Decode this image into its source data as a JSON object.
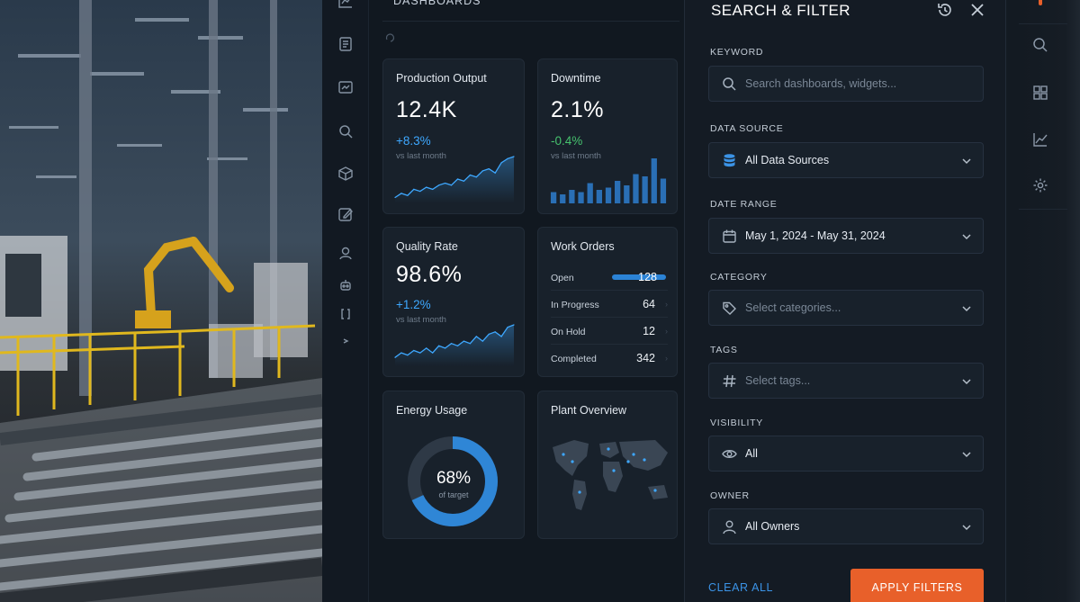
{
  "dashboard": {
    "title": "DASHBOARDS",
    "cards": {
      "production": {
        "title": "Production Output",
        "value": "12.4K",
        "delta": "+8.3%",
        "sub": "vs last month"
      },
      "downtime": {
        "title": "Downtime",
        "value": "2.1%",
        "delta": "-0.4%",
        "sub": "vs last month"
      },
      "quality": {
        "title": "Quality Rate",
        "value": "98.6%",
        "delta": "+1.2%",
        "sub": "vs last month"
      },
      "work_orders": {
        "title": "Work Orders",
        "rows": [
          {
            "label": "Open",
            "value": "128"
          },
          {
            "label": "In Progress",
            "value": "64"
          },
          {
            "label": "On Hold",
            "value": "12"
          },
          {
            "label": "Completed",
            "value": "342"
          }
        ]
      },
      "energy": {
        "title": "Energy Usage",
        "value": "68%",
        "sub": "of target",
        "fraction": 0.68
      },
      "plant": {
        "title": "Plant Overview"
      }
    }
  },
  "filter_panel": {
    "title": "SEARCH & FILTER",
    "keyword": {
      "label": "KEYWORD",
      "placeholder": "Search dashboards, widgets..."
    },
    "data_source": {
      "label": "DATA SOURCE",
      "value": "All Data Sources"
    },
    "date_range": {
      "label": "DATE RANGE",
      "value": "May 1, 2024 - May 31, 2024"
    },
    "category": {
      "label": "CATEGORY",
      "placeholder": "Select categories..."
    },
    "tags": {
      "label": "TAGS",
      "placeholder": "Select tags..."
    },
    "visibility": {
      "label": "VISIBILITY",
      "value": "All"
    },
    "owner": {
      "label": "OWNER",
      "value": "All Owners"
    },
    "clear_label": "CLEAR ALL",
    "apply_label": "APPLY FILTERS"
  },
  "colors": {
    "accent": "#e8602a",
    "link": "#3b93e6",
    "chart_blue": "#3ea8ff",
    "positive": "#46c26e"
  },
  "chart_data": [
    {
      "type": "area",
      "title": "Production Output",
      "x": [
        1,
        2,
        3,
        4,
        5,
        6,
        7,
        8,
        9,
        10,
        11,
        12,
        13,
        14,
        15,
        16,
        17,
        18,
        19,
        20
      ],
      "values": [
        2,
        4,
        3,
        6,
        5,
        7,
        6,
        8,
        9,
        8,
        11,
        10,
        13,
        12,
        15,
        16,
        14,
        19,
        21,
        22
      ]
    },
    {
      "type": "bar",
      "title": "Downtime",
      "x": [
        1,
        2,
        3,
        4,
        5,
        6,
        7,
        8,
        9,
        10,
        11,
        12,
        13
      ],
      "values": [
        5,
        4,
        6,
        5,
        9,
        6,
        7,
        10,
        8,
        13,
        12,
        20,
        11
      ]
    },
    {
      "type": "area",
      "title": "Quality Rate",
      "x": [
        1,
        2,
        3,
        4,
        5,
        6,
        7,
        8,
        9,
        10,
        11,
        12,
        13,
        14,
        15,
        16,
        17,
        18,
        19,
        20
      ],
      "values": [
        3,
        5,
        4,
        6,
        5,
        7,
        5,
        8,
        7,
        9,
        8,
        10,
        9,
        12,
        10,
        13,
        14,
        12,
        16,
        17
      ]
    }
  ]
}
